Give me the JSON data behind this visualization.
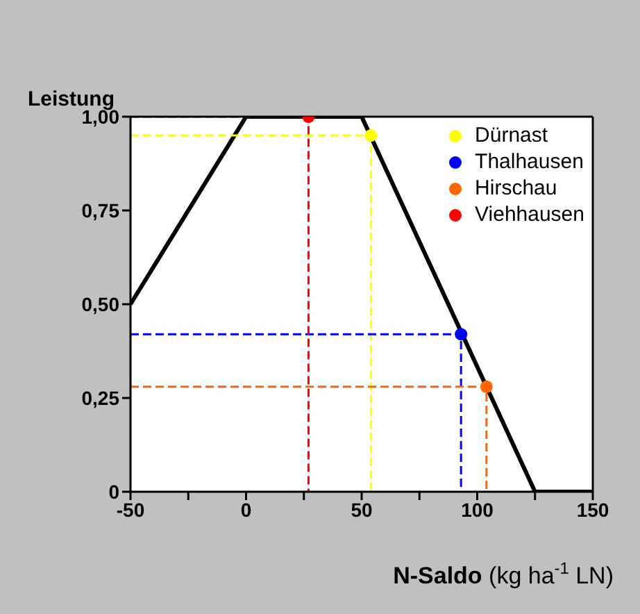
{
  "chart_data": {
    "type": "scatter",
    "ylabel": "Leistung",
    "xlabel": "N-Saldo (kg ha$^{-1}$ LN)",
    "xlim": [
      -50,
      150
    ],
    "xticks": [
      -50,
      {
        "value": -25,
        "label": null
      },
      0,
      {
        "value": 25,
        "label": null
      },
      50,
      {
        "value": 75,
        "label": null
      },
      100,
      {
        "value": 125,
        "label": null
      },
      150
    ],
    "ylim": [
      0,
      1
    ],
    "yticks": [
      {
        "value": 0,
        "label": "0"
      },
      {
        "value": 0.25,
        "label": "0,25"
      },
      {
        "value": 0.5,
        "label": "0,50"
      },
      {
        "value": 0.75,
        "label": "0,75"
      },
      {
        "value": 1,
        "label": "1,00"
      }
    ],
    "legend": "top right",
    "marker": "circle",
    "series": [
      {
        "type": "line",
        "color": "#000000",
        "marker": "none",
        "line_style": "solid",
        "x": [
          -50,
          0,
          50,
          125,
          150
        ],
        "values": [
          0.5,
          1,
          1,
          0,
          0
        ]
      },
      {
        "type": "line",
        "color": "#ffff00",
        "marker": "none",
        "line_style": "dashed",
        "x": [
          -50,
          54,
          54
        ],
        "values": [
          0.95,
          0.95,
          0
        ]
      },
      {
        "type": "line",
        "color": "#0000ff",
        "marker": "none",
        "line_style": "dashed",
        "x": [
          -50,
          93,
          93
        ],
        "values": [
          0.42,
          0.42,
          0
        ]
      },
      {
        "type": "line",
        "color": "#ff6600",
        "marker": "none",
        "line_style": "dashed",
        "x": [
          -50,
          104,
          104
        ],
        "values": [
          0.28,
          0.28,
          0
        ]
      },
      {
        "type": "line",
        "color": "#ff0000",
        "marker": "none",
        "line_style": "dashed",
        "x": [
          -50,
          27,
          27
        ],
        "values": [
          1,
          1,
          0
        ]
      },
      {
        "name": "Dürnast",
        "color": "#ffff00",
        "x": [
          54
        ],
        "values": [
          0.95
        ]
      },
      {
        "name": "Thalhausen",
        "color": "#0000ff",
        "x": [
          93
        ],
        "values": [
          0.42
        ]
      },
      {
        "name": "Hirschau",
        "color": "#ff6600",
        "x": [
          104
        ],
        "values": [
          0.28
        ]
      },
      {
        "name": "Viehhausen",
        "color": "#ff0000",
        "x": [
          27
        ],
        "values": [
          1
        ]
      }
    ]
  }
}
